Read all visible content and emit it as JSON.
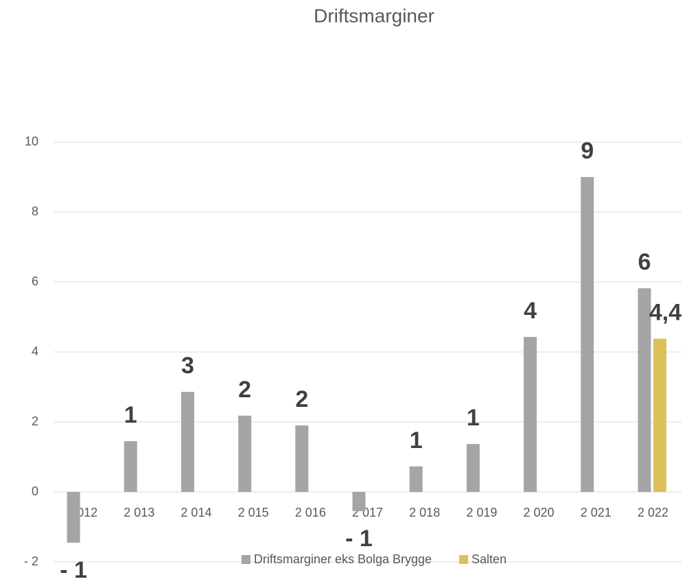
{
  "chart_data": {
    "type": "bar",
    "title": "Driftsmarginer",
    "categories": [
      "2 012",
      "2 013",
      "2 014",
      "2 015",
      "2 016",
      "2 017",
      "2 018",
      "2 019",
      "2 020",
      "2 021",
      "2 022"
    ],
    "series": [
      {
        "name": "Driftsmarginer eks Bolga Brygge",
        "color": "#a5a5a5",
        "values": [
          -1.45,
          1.45,
          2.86,
          2.18,
          1.9,
          -0.55,
          0.73,
          1.37,
          4.43,
          9.0,
          5.82
        ],
        "value_labels": [
          "- 1",
          "1",
          "3",
          "2",
          "2",
          "- 1",
          "1",
          "1",
          "4",
          "9",
          "6"
        ]
      },
      {
        "name": "Salten",
        "color": "#dcc05a",
        "values": [
          null,
          null,
          null,
          null,
          null,
          null,
          null,
          null,
          null,
          null,
          4.38
        ],
        "value_labels": [
          null,
          null,
          null,
          null,
          null,
          null,
          null,
          null,
          null,
          null,
          "4,4"
        ]
      }
    ],
    "ylim": [
      -2,
      10
    ],
    "yticks": [
      {
        "value": -2,
        "label": "- 2"
      },
      0,
      2,
      4,
      6,
      8,
      10
    ],
    "grid": true,
    "legend": "bottom"
  }
}
